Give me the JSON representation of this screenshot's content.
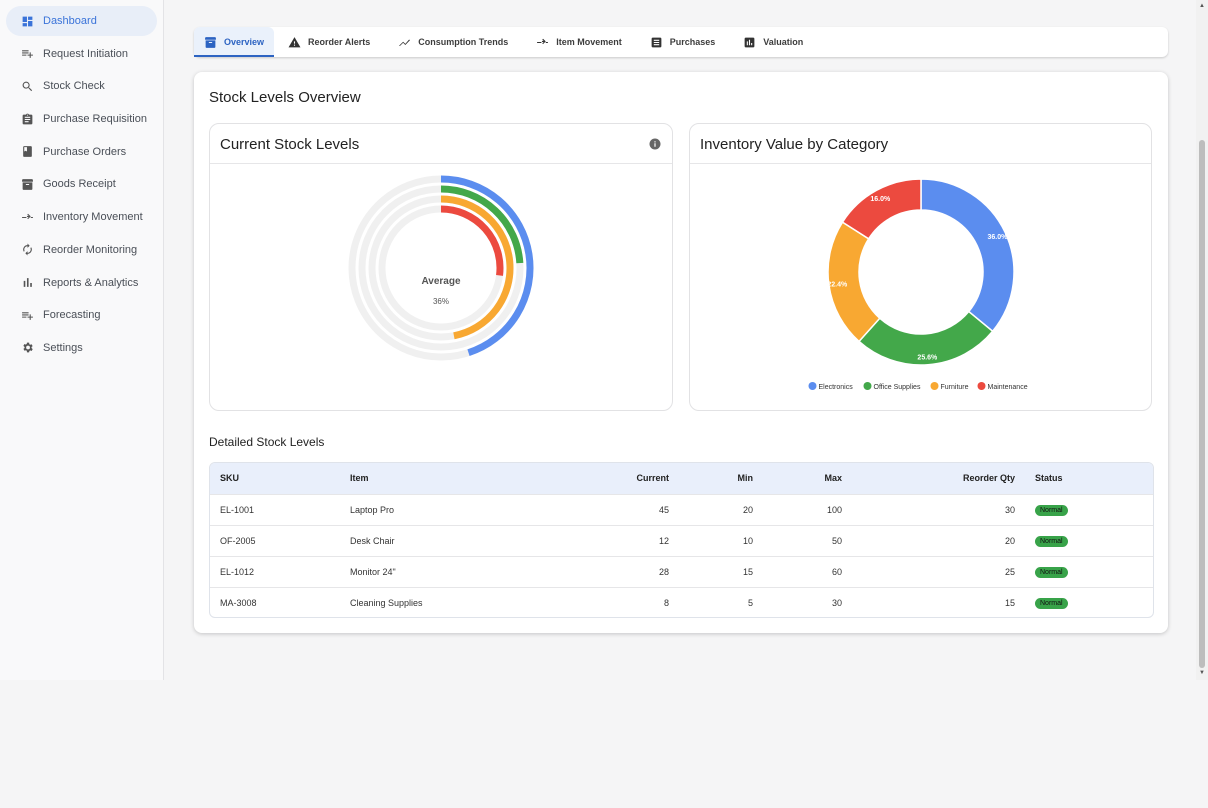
{
  "sidebar": {
    "items": [
      {
        "label": "Dashboard",
        "icon": "dashboard-icon",
        "active": true
      },
      {
        "label": "Request Initiation",
        "icon": "playlist-add-icon"
      },
      {
        "label": "Stock Check",
        "icon": "search-icon"
      },
      {
        "label": "Purchase Requisition",
        "icon": "clipboard-icon"
      },
      {
        "label": "Purchase Orders",
        "icon": "receipt-icon"
      },
      {
        "label": "Goods Receipt",
        "icon": "archive-icon"
      },
      {
        "label": "Inventory Movement",
        "icon": "swap-icon"
      },
      {
        "label": "Reorder Monitoring",
        "icon": "refresh-icon"
      },
      {
        "label": "Reports & Analytics",
        "icon": "bar-chart-icon"
      },
      {
        "label": "Forecasting",
        "icon": "playlist-add-icon"
      },
      {
        "label": "Settings",
        "icon": "gear-icon"
      }
    ]
  },
  "tabs": [
    {
      "label": "Overview",
      "icon": "archive-icon",
      "active": true
    },
    {
      "label": "Reorder Alerts",
      "icon": "warning-icon"
    },
    {
      "label": "Consumption Trends",
      "icon": "trending-icon"
    },
    {
      "label": "Item Movement",
      "icon": "swap-icon"
    },
    {
      "label": "Purchases",
      "icon": "document-icon"
    },
    {
      "label": "Valuation",
      "icon": "bar-chart-icon"
    }
  ],
  "main": {
    "section_title": "Stock Levels Overview",
    "detail_title": "Detailed Stock Levels"
  },
  "colors": {
    "accent": "#3a73d9",
    "blue": "#5b8def",
    "green": "#43a84a",
    "orange": "#f8a832",
    "red": "#ec4a3f",
    "track": "#f0f0f0",
    "status_green": "#38a349"
  },
  "chart_data": [
    {
      "type": "radial-bar",
      "title": "Current Stock Levels",
      "center_label": "Average",
      "center_value": "36%",
      "series": [
        {
          "value": 45,
          "color": "#5b8def"
        },
        {
          "value": 24,
          "color": "#43a84a"
        },
        {
          "value": 47,
          "color": "#f8a832"
        },
        {
          "value": 27,
          "color": "#ec4a3f"
        }
      ]
    },
    {
      "type": "pie",
      "title": "Inventory Value by Category",
      "categories": [
        "Electronics",
        "Office Supplies",
        "Furniture",
        "Maintenance"
      ],
      "values": [
        36.0,
        25.6,
        22.4,
        16.0
      ],
      "labels": [
        "36.0%",
        "25.6%",
        "22.4%",
        "16.0%"
      ],
      "colors": [
        "#5b8def",
        "#43a84a",
        "#f8a832",
        "#ec4a3f"
      ]
    }
  ],
  "table": {
    "headers": [
      "SKU",
      "Item",
      "Current",
      "Min",
      "Max",
      "Reorder Qty",
      "Status"
    ],
    "rows": [
      [
        "EL-1001",
        "Laptop Pro",
        "45",
        "20",
        "100",
        "30",
        "Normal"
      ],
      [
        "OF-2005",
        "Desk Chair",
        "12",
        "10",
        "50",
        "20",
        "Normal"
      ],
      [
        "EL-1012",
        "Monitor 24\"",
        "28",
        "15",
        "60",
        "25",
        "Normal"
      ],
      [
        "MA-3008",
        "Cleaning Supplies",
        "8",
        "5",
        "30",
        "15",
        "Normal"
      ]
    ]
  }
}
